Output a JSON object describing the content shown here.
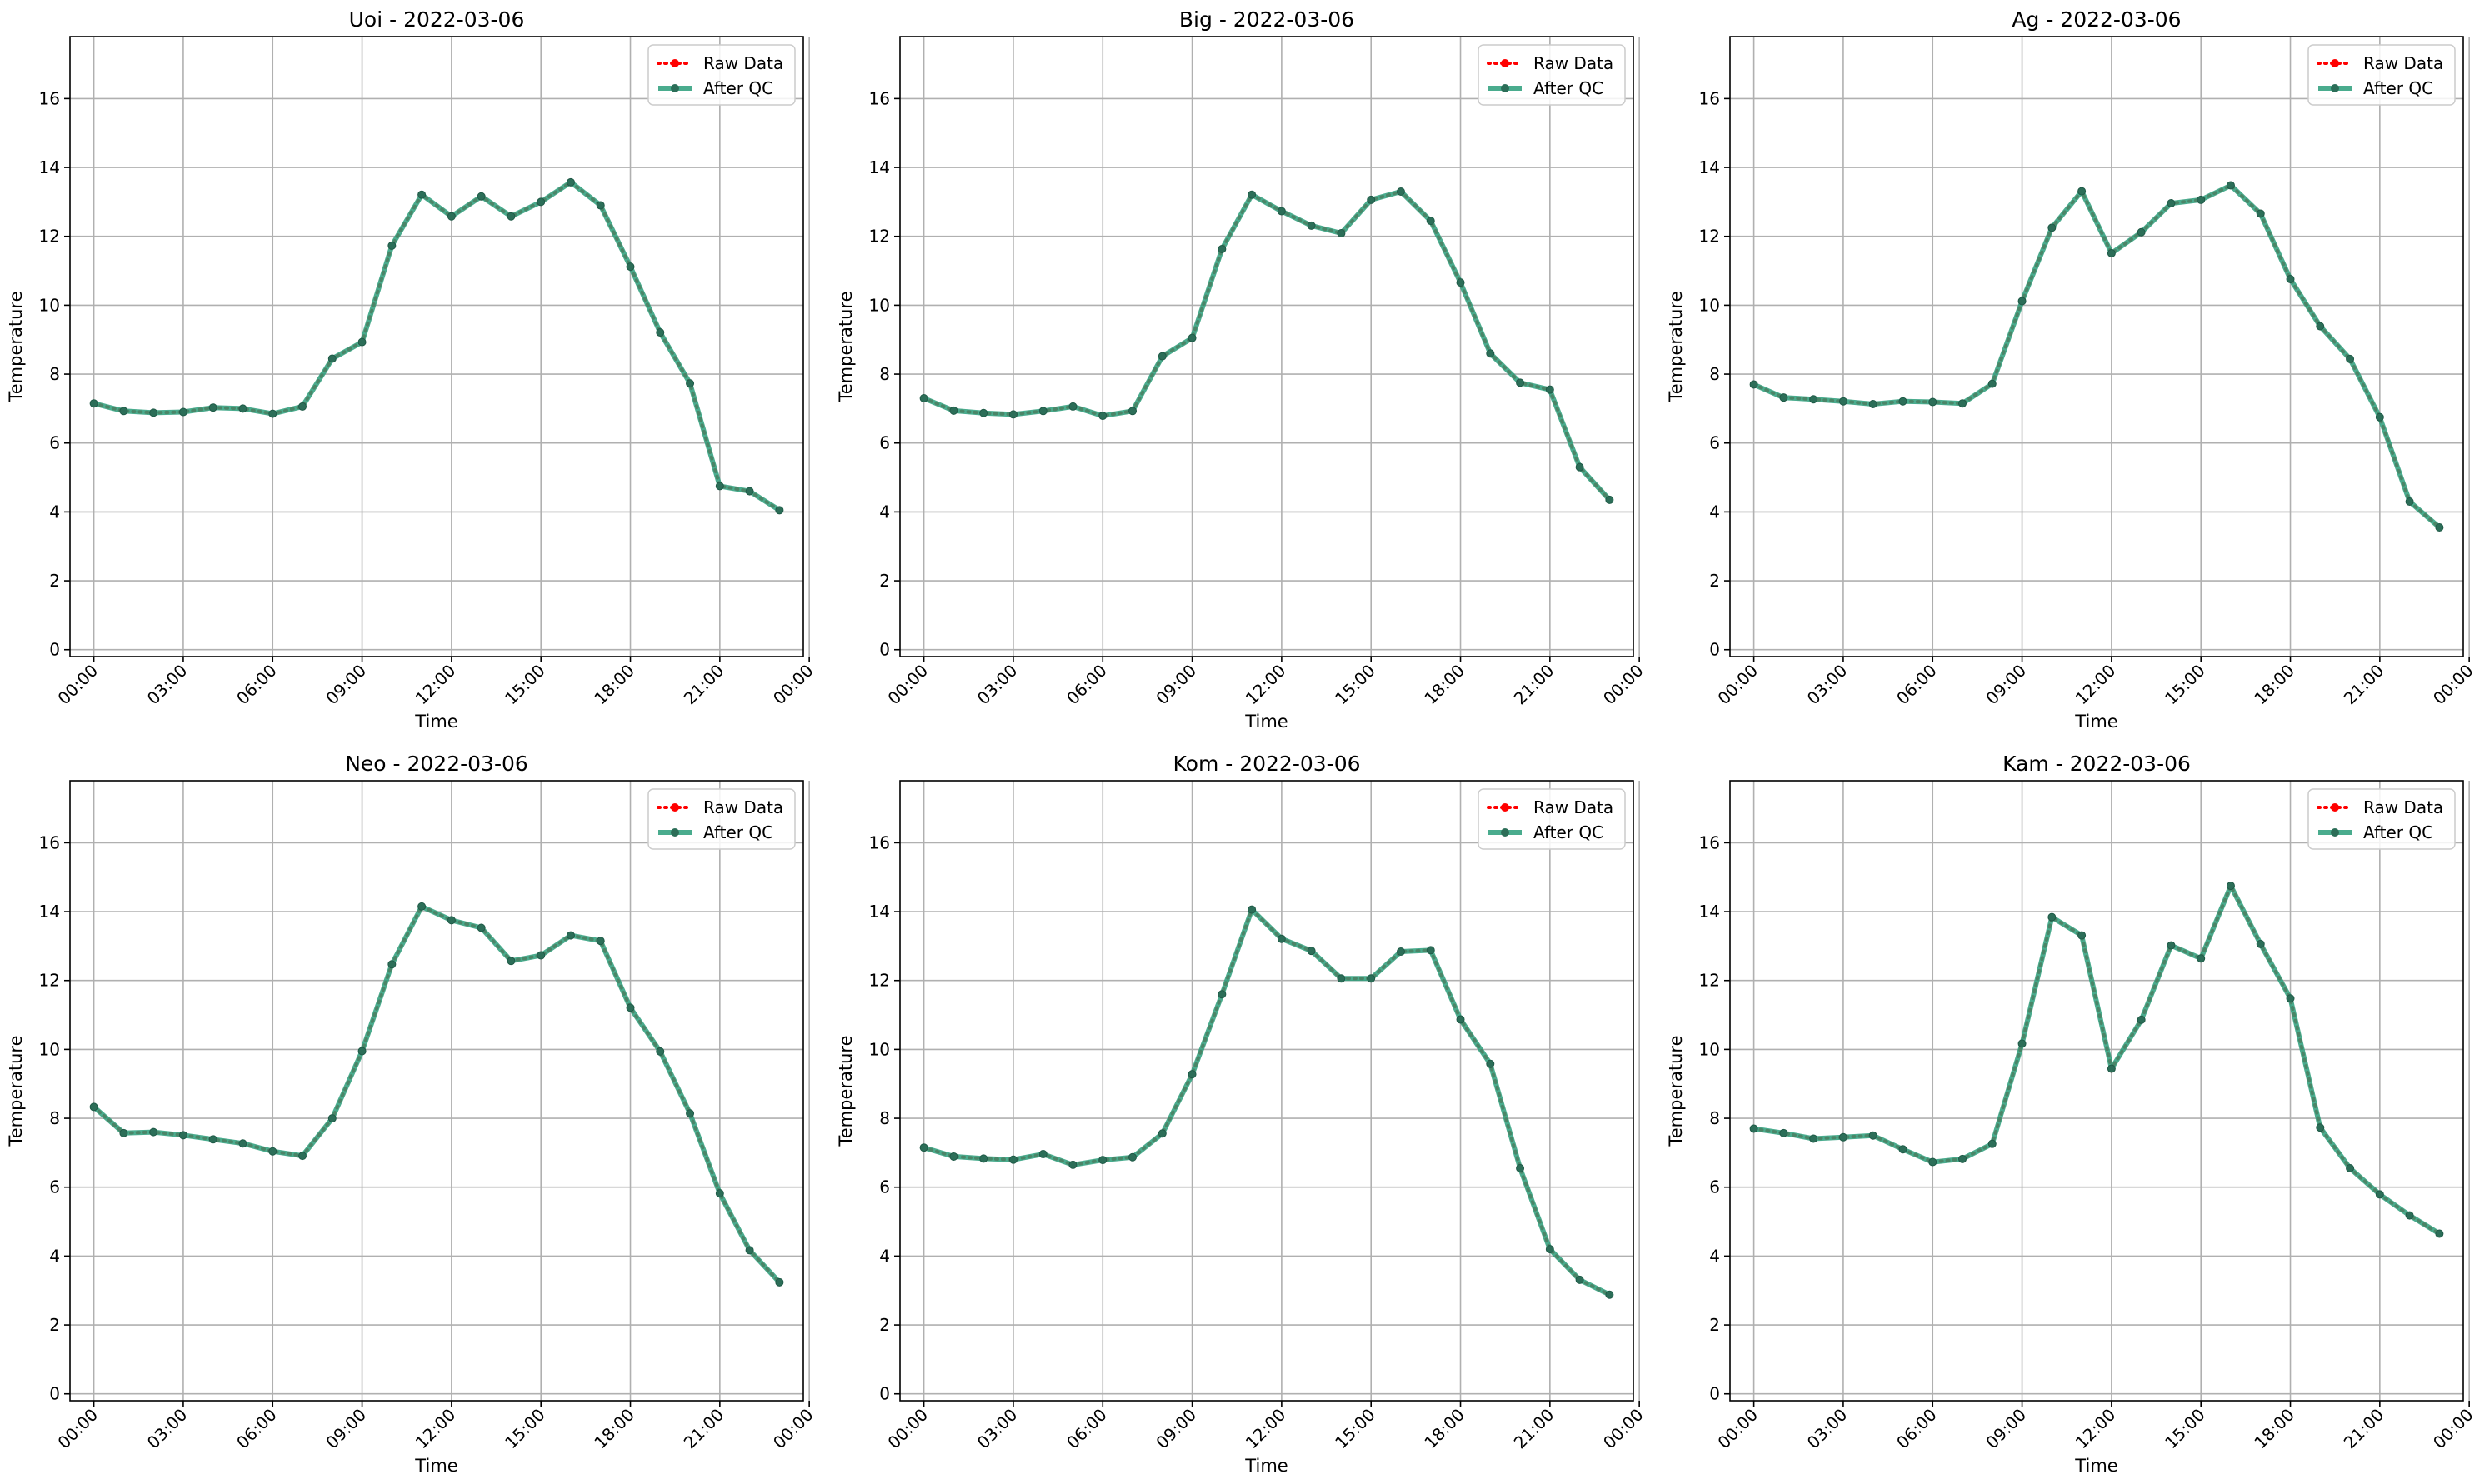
{
  "colors": {
    "raw": "#ff0000",
    "qc": "#2a9d7a",
    "grid": "#b0b0b0",
    "axis": "#000000"
  },
  "chart_data": [
    {
      "type": "line",
      "title": "Uoi - 2022-03-06",
      "xlabel": "Time",
      "ylabel": "Temperature",
      "x_ticks": [
        "00:00",
        "03:00",
        "06:00",
        "09:00",
        "12:00",
        "15:00",
        "18:00",
        "21:00",
        "00:00"
      ],
      "y_ticks": [
        "0",
        "2",
        "4",
        "6",
        "8",
        "10",
        "12",
        "14",
        "16"
      ],
      "xlim": [
        -0.8,
        23.8
      ],
      "ylim": [
        -0.2,
        17.8
      ],
      "grid": true,
      "legend_position": "top-right",
      "series": [
        {
          "name": "Raw Data",
          "style": "dotted-with-markers",
          "color": "#ff0000",
          "x": [
            0,
            1,
            2,
            3,
            4,
            5,
            6,
            7,
            8,
            9,
            10,
            11,
            12,
            13,
            14,
            15,
            16,
            17,
            18,
            19,
            20,
            21,
            22,
            23
          ],
          "y": [
            7.15,
            6.93,
            6.88,
            6.9,
            7.03,
            7.0,
            6.85,
            7.06,
            8.45,
            8.93,
            11.73,
            13.21,
            12.58,
            13.16,
            12.58,
            13.0,
            13.57,
            12.9,
            11.12,
            9.21,
            7.73,
            4.75,
            4.6,
            4.05
          ]
        },
        {
          "name": "After QC",
          "style": "solid-with-markers",
          "color": "#2a9d7a",
          "x": [
            0,
            1,
            2,
            3,
            4,
            5,
            6,
            7,
            8,
            9,
            10,
            11,
            12,
            13,
            14,
            15,
            16,
            17,
            18,
            19,
            20,
            21,
            22,
            23
          ],
          "y": [
            7.15,
            6.93,
            6.88,
            6.9,
            7.03,
            7.0,
            6.85,
            7.06,
            8.45,
            8.93,
            11.73,
            13.21,
            12.58,
            13.16,
            12.58,
            13.0,
            13.57,
            12.9,
            11.12,
            9.21,
            7.73,
            4.75,
            4.6,
            4.05
          ]
        }
      ]
    },
    {
      "type": "line",
      "title": "Big - 2022-03-06",
      "xlabel": "Time",
      "ylabel": "Temperature",
      "x_ticks": [
        "00:00",
        "03:00",
        "06:00",
        "09:00",
        "12:00",
        "15:00",
        "18:00",
        "21:00",
        "00:00"
      ],
      "y_ticks": [
        "0",
        "2",
        "4",
        "6",
        "8",
        "10",
        "12",
        "14",
        "16"
      ],
      "xlim": [
        -0.8,
        23.8
      ],
      "ylim": [
        -0.2,
        17.8
      ],
      "grid": true,
      "legend_position": "top-right",
      "series": [
        {
          "name": "Raw Data",
          "style": "dotted-with-markers",
          "color": "#ff0000",
          "x": [
            0,
            1,
            2,
            3,
            4,
            5,
            6,
            7,
            8,
            9,
            10,
            11,
            12,
            13,
            14,
            15,
            16,
            17,
            18,
            19,
            20,
            21,
            22,
            23
          ],
          "y": [
            7.3,
            6.94,
            6.87,
            6.83,
            6.93,
            7.06,
            6.79,
            6.93,
            8.52,
            9.05,
            11.63,
            13.21,
            12.73,
            12.31,
            12.09,
            13.06,
            13.3,
            12.45,
            10.66,
            8.6,
            7.75,
            7.55,
            5.3,
            4.35
          ]
        },
        {
          "name": "After QC",
          "style": "solid-with-markers",
          "color": "#2a9d7a",
          "x": [
            0,
            1,
            2,
            3,
            4,
            5,
            6,
            7,
            8,
            9,
            10,
            11,
            12,
            13,
            14,
            15,
            16,
            17,
            18,
            19,
            20,
            21,
            22,
            23
          ],
          "y": [
            7.3,
            6.94,
            6.87,
            6.83,
            6.93,
            7.06,
            6.79,
            6.93,
            8.52,
            9.05,
            11.63,
            13.21,
            12.73,
            12.31,
            12.09,
            13.06,
            13.3,
            12.45,
            10.66,
            8.6,
            7.75,
            7.55,
            5.3,
            4.35
          ]
        }
      ]
    },
    {
      "type": "line",
      "title": "Ag - 2022-03-06",
      "xlabel": "Time",
      "ylabel": "Temperature",
      "x_ticks": [
        "00:00",
        "03:00",
        "06:00",
        "09:00",
        "12:00",
        "15:00",
        "18:00",
        "21:00",
        "00:00"
      ],
      "y_ticks": [
        "0",
        "2",
        "4",
        "6",
        "8",
        "10",
        "12",
        "14",
        "16"
      ],
      "xlim": [
        -0.8,
        23.8
      ],
      "ylim": [
        -0.2,
        17.8
      ],
      "grid": true,
      "legend_position": "top-right",
      "series": [
        {
          "name": "Raw Data",
          "style": "dotted-with-markers",
          "color": "#ff0000",
          "x": [
            0,
            1,
            2,
            3,
            4,
            5,
            6,
            7,
            8,
            9,
            10,
            11,
            12,
            13,
            14,
            15,
            16,
            17,
            18,
            19,
            20,
            21,
            22,
            23
          ],
          "y": [
            7.7,
            7.32,
            7.27,
            7.21,
            7.13,
            7.21,
            7.19,
            7.15,
            7.72,
            10.12,
            12.25,
            13.31,
            11.51,
            12.12,
            12.96,
            13.06,
            13.48,
            12.66,
            10.76,
            9.39,
            8.44,
            6.75,
            4.3,
            3.55
          ]
        },
        {
          "name": "After QC",
          "style": "solid-with-markers",
          "color": "#2a9d7a",
          "x": [
            0,
            1,
            2,
            3,
            4,
            5,
            6,
            7,
            8,
            9,
            10,
            11,
            12,
            13,
            14,
            15,
            16,
            17,
            18,
            19,
            20,
            21,
            22,
            23
          ],
          "y": [
            7.7,
            7.32,
            7.27,
            7.21,
            7.13,
            7.21,
            7.19,
            7.15,
            7.72,
            10.12,
            12.25,
            13.31,
            11.51,
            12.12,
            12.96,
            13.06,
            13.48,
            12.66,
            10.76,
            9.39,
            8.44,
            6.75,
            4.3,
            3.55
          ]
        }
      ]
    },
    {
      "type": "line",
      "title": "Neo - 2022-03-06",
      "xlabel": "Time",
      "ylabel": "Temperature",
      "x_ticks": [
        "00:00",
        "03:00",
        "06:00",
        "09:00",
        "12:00",
        "15:00",
        "18:00",
        "21:00",
        "00:00"
      ],
      "y_ticks": [
        "0",
        "2",
        "4",
        "6",
        "8",
        "10",
        "12",
        "14",
        "16"
      ],
      "xlim": [
        -0.8,
        23.8
      ],
      "ylim": [
        -0.2,
        17.8
      ],
      "grid": true,
      "legend_position": "top-right",
      "series": [
        {
          "name": "Raw Data",
          "style": "dotted-with-markers",
          "color": "#ff0000",
          "x": [
            0,
            1,
            2,
            3,
            4,
            5,
            6,
            7,
            8,
            9,
            10,
            11,
            12,
            13,
            14,
            15,
            16,
            17,
            18,
            19,
            20,
            21,
            22,
            23
          ],
          "y": [
            8.33,
            7.57,
            7.6,
            7.51,
            7.39,
            7.27,
            7.04,
            6.91,
            8.0,
            9.95,
            12.47,
            14.15,
            13.75,
            13.53,
            12.57,
            12.73,
            13.31,
            13.15,
            11.21,
            9.94,
            8.14,
            5.82,
            4.17,
            3.24
          ]
        },
        {
          "name": "After QC",
          "style": "solid-with-markers",
          "color": "#2a9d7a",
          "x": [
            0,
            1,
            2,
            3,
            4,
            5,
            6,
            7,
            8,
            9,
            10,
            11,
            12,
            13,
            14,
            15,
            16,
            17,
            18,
            19,
            20,
            21,
            22,
            23
          ],
          "y": [
            8.33,
            7.57,
            7.6,
            7.51,
            7.39,
            7.27,
            7.04,
            6.91,
            8.0,
            9.95,
            12.47,
            14.15,
            13.75,
            13.53,
            12.57,
            12.73,
            13.31,
            13.15,
            11.21,
            9.94,
            8.14,
            5.82,
            4.17,
            3.24
          ]
        }
      ]
    },
    {
      "type": "line",
      "title": "Kom - 2022-03-06",
      "xlabel": "Time",
      "ylabel": "Temperature",
      "x_ticks": [
        "00:00",
        "03:00",
        "06:00",
        "09:00",
        "12:00",
        "15:00",
        "18:00",
        "21:00",
        "00:00"
      ],
      "y_ticks": [
        "0",
        "2",
        "4",
        "6",
        "8",
        "10",
        "12",
        "14",
        "16"
      ],
      "xlim": [
        -0.8,
        23.8
      ],
      "ylim": [
        -0.2,
        17.8
      ],
      "grid": true,
      "legend_position": "top-right",
      "series": [
        {
          "name": "Raw Data",
          "style": "dotted-with-markers",
          "color": "#ff0000",
          "x": [
            0,
            1,
            2,
            3,
            4,
            5,
            6,
            7,
            8,
            9,
            10,
            11,
            12,
            13,
            14,
            15,
            16,
            17,
            18,
            19,
            20,
            21,
            22,
            23
          ],
          "y": [
            7.15,
            6.89,
            6.83,
            6.8,
            6.96,
            6.65,
            6.79,
            6.87,
            7.56,
            9.28,
            11.6,
            14.06,
            13.21,
            12.86,
            12.06,
            12.06,
            12.84,
            12.88,
            10.87,
            9.58,
            6.55,
            4.2,
            3.31,
            2.88
          ]
        },
        {
          "name": "After QC",
          "style": "solid-with-markers",
          "color": "#2a9d7a",
          "x": [
            0,
            1,
            2,
            3,
            4,
            5,
            6,
            7,
            8,
            9,
            10,
            11,
            12,
            13,
            14,
            15,
            16,
            17,
            18,
            19,
            20,
            21,
            22,
            23
          ],
          "y": [
            7.15,
            6.89,
            6.83,
            6.8,
            6.96,
            6.65,
            6.79,
            6.87,
            7.56,
            9.28,
            11.6,
            14.06,
            13.21,
            12.86,
            12.06,
            12.06,
            12.84,
            12.88,
            10.87,
            9.58,
            6.55,
            4.2,
            3.31,
            2.88
          ]
        }
      ]
    },
    {
      "type": "line",
      "title": "Kam - 2022-03-06",
      "xlabel": "Time",
      "ylabel": "Temperature",
      "x_ticks": [
        "00:00",
        "03:00",
        "06:00",
        "09:00",
        "12:00",
        "15:00",
        "18:00",
        "21:00",
        "00:00"
      ],
      "y_ticks": [
        "0",
        "2",
        "4",
        "6",
        "8",
        "10",
        "12",
        "14",
        "16"
      ],
      "xlim": [
        -0.8,
        23.8
      ],
      "ylim": [
        -0.2,
        17.8
      ],
      "grid": true,
      "legend_position": "top-right",
      "series": [
        {
          "name": "Raw Data",
          "style": "dotted-with-markers",
          "color": "#ff0000",
          "x": [
            0,
            1,
            2,
            3,
            4,
            5,
            6,
            7,
            8,
            9,
            10,
            11,
            12,
            13,
            14,
            15,
            16,
            17,
            18,
            19,
            20,
            21,
            22,
            23
          ],
          "y": [
            7.7,
            7.57,
            7.41,
            7.45,
            7.5,
            7.1,
            6.73,
            6.82,
            7.26,
            10.17,
            13.84,
            13.31,
            9.44,
            10.86,
            13.02,
            12.64,
            14.75,
            13.06,
            11.48,
            7.73,
            6.55,
            5.79,
            5.18,
            4.65
          ]
        },
        {
          "name": "After QC",
          "style": "solid-with-markers",
          "color": "#2a9d7a",
          "x": [
            0,
            1,
            2,
            3,
            4,
            5,
            6,
            7,
            8,
            9,
            10,
            11,
            12,
            13,
            14,
            15,
            16,
            17,
            18,
            19,
            20,
            21,
            22,
            23
          ],
          "y": [
            7.7,
            7.57,
            7.41,
            7.45,
            7.5,
            7.1,
            6.73,
            6.82,
            7.26,
            10.17,
            13.84,
            13.31,
            9.44,
            10.86,
            13.02,
            12.64,
            14.75,
            13.06,
            11.48,
            7.73,
            6.55,
            5.79,
            5.18,
            4.65
          ]
        }
      ]
    }
  ]
}
